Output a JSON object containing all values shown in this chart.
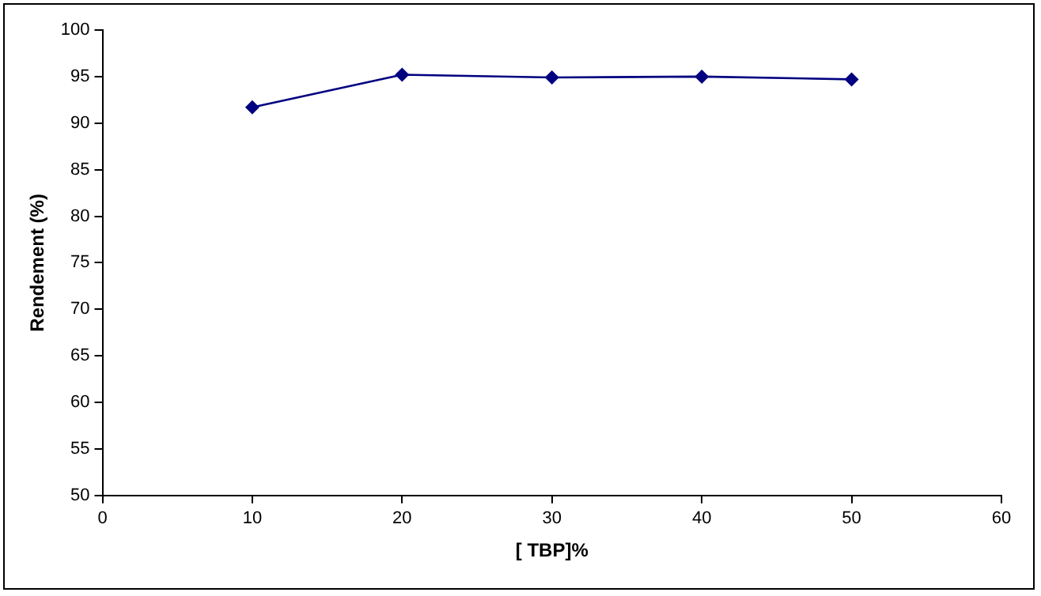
{
  "chart_data": {
    "type": "line",
    "xlabel": "[ TBP]%",
    "ylabel": "Rendement (%)",
    "x": [
      10,
      20,
      30,
      40,
      50
    ],
    "series": [
      {
        "color": "#000080",
        "values": [
          91.7,
          95.2,
          94.9,
          95.0,
          94.7
        ]
      }
    ],
    "xlim": [
      0,
      60
    ],
    "xticks": [
      0,
      10,
      20,
      30,
      40,
      50,
      60
    ],
    "ylim": [
      50,
      100
    ],
    "yticks": [
      50,
      55,
      60,
      65,
      70,
      75,
      80,
      85,
      90,
      95,
      100
    ],
    "grid": false,
    "legend": false,
    "marker": "diamond",
    "line_style": "solid"
  }
}
